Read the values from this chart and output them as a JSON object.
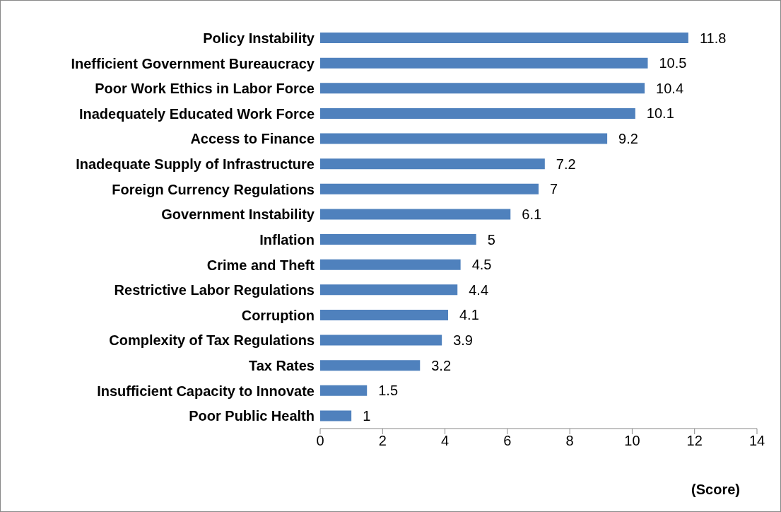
{
  "chart_data": {
    "type": "bar",
    "orientation": "horizontal",
    "xlabel": "(Score)",
    "categories": [
      "Policy Instability",
      "Inefficient Government Bureaucracy",
      "Poor Work Ethics in Labor Force",
      "Inadequately Educated Work Force",
      "Access to Finance",
      "Inadequate Supply of Infrastructure",
      "Foreign Currency Regulations",
      "Government Instability",
      "Inflation",
      "Crime and Theft",
      "Restrictive Labor Regulations",
      "Corruption",
      "Complexity of Tax Regulations",
      "Tax Rates",
      "Insufficient Capacity to Innovate",
      "Poor Public Health"
    ],
    "values": [
      11.8,
      10.5,
      10.4,
      10.1,
      9.2,
      7.2,
      7,
      6.1,
      5,
      4.5,
      4.4,
      4.1,
      3.9,
      3.2,
      1.5,
      1
    ],
    "color": "#4f81bd",
    "xlim": [
      0,
      14
    ],
    "xticks": [
      0,
      2,
      4,
      6,
      8,
      10,
      12,
      14
    ],
    "grid": false,
    "data_labels": true
  }
}
